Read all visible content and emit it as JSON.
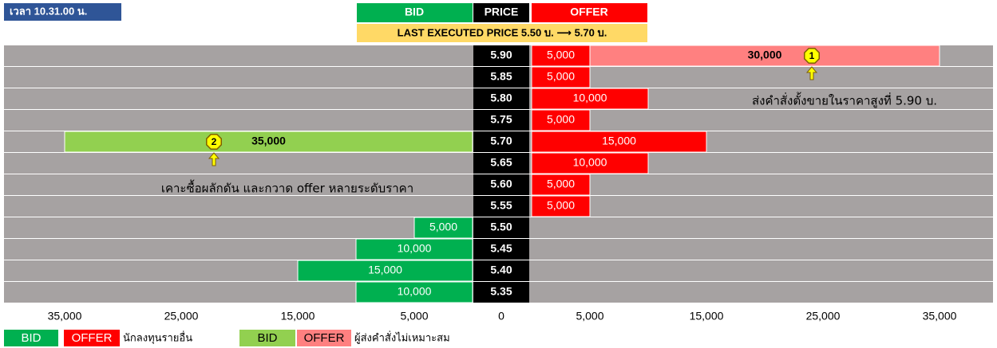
{
  "chart_data": {
    "type": "butterfly-bar",
    "title": "เวลา 10.31.00 น.",
    "subtitle": "LAST EXECUTED PRICE 5.50 บ. ⟶ 5.70 บ.",
    "headers": [
      "BID",
      "PRICE",
      "OFFER"
    ],
    "categories": [
      "5.90",
      "5.85",
      "5.80",
      "5.75",
      "5.70",
      "5.65",
      "5.60",
      "5.55",
      "5.50",
      "5.45",
      "5.40",
      "5.35"
    ],
    "groups": [
      "นักลงทุนรายอื่น",
      "ผู้ส่งคำสั่งไม่เหมาะสม"
    ],
    "series": [
      {
        "name": "BID",
        "side": "bid",
        "group": 0,
        "color": "#00b050",
        "values": [
          null,
          null,
          null,
          null,
          null,
          null,
          null,
          null,
          5000,
          10000,
          15000,
          10000
        ],
        "value_labels": [
          null,
          null,
          null,
          null,
          null,
          null,
          null,
          null,
          "5,000",
          "10,000",
          "15,000",
          "10,000"
        ]
      },
      {
        "name": "OFFER",
        "side": "offer",
        "group": 0,
        "color": "#ff0000",
        "values": [
          5000,
          5000,
          10000,
          5000,
          15000,
          10000,
          5000,
          5000,
          null,
          null,
          null,
          null
        ],
        "value_labels": [
          "5,000",
          "5,000",
          "10,000",
          "5,000",
          "15,000",
          "10,000",
          "5,000",
          "5,000",
          null,
          null,
          null,
          null
        ]
      },
      {
        "name": "BID",
        "side": "bid",
        "group": 1,
        "color": "#92d050",
        "values": [
          null,
          null,
          null,
          null,
          35000,
          null,
          null,
          null,
          null,
          null,
          null,
          null
        ],
        "value_labels": [
          null,
          null,
          null,
          null,
          "35,000",
          null,
          null,
          null,
          null,
          null,
          null,
          null
        ]
      },
      {
        "name": "OFFER",
        "side": "offer",
        "group": 1,
        "color": "#ff8080",
        "values": [
          30000,
          null,
          null,
          null,
          null,
          null,
          null,
          null,
          null,
          null,
          null,
          null
        ],
        "value_labels": [
          "30,000",
          null,
          null,
          null,
          null,
          null,
          null,
          null,
          null,
          null,
          null,
          null
        ]
      }
    ],
    "xlim": [
      0,
      35000
    ],
    "xticks_bid": [
      {
        "value": 35000,
        "label": "35,000"
      },
      {
        "value": 25000,
        "label": "25,000"
      },
      {
        "value": 15000,
        "label": "15,000"
      },
      {
        "value": 5000,
        "label": "5,000"
      }
    ],
    "xtick_center": 0,
    "xticks_offer": [
      {
        "value": 5000,
        "label": "5,000"
      },
      {
        "value": 15000,
        "label": "15,000"
      },
      {
        "value": 25000,
        "label": "25,000"
      },
      {
        "value": 35000,
        "label": "35,000"
      }
    ],
    "annotations": [
      {
        "badge": "1",
        "text": "ส่งคำสั่งตั้งขายในราคาสูงที่ 5.90 บ."
      },
      {
        "badge": "2",
        "text": "เคาะซื้อผลักดัน และกวาด offer หลายระดับราคา"
      }
    ]
  }
}
